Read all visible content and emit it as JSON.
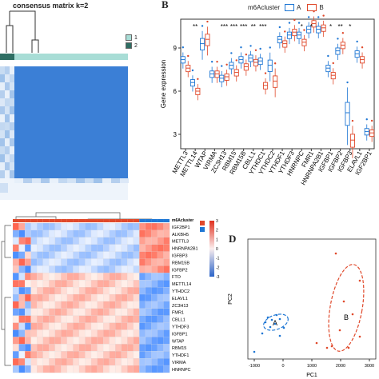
{
  "panel_a": {
    "title": "consensus matrix k=2",
    "legend": [
      "1",
      "2"
    ],
    "legend_colors": [
      "#a8ddd6",
      "#2e6e63"
    ]
  },
  "panel_b": {
    "letter": "B",
    "legend_title": "m6Acluster",
    "legend_labels": [
      "A",
      "B"
    ],
    "cluster_colors": {
      "A": "#1f77d4",
      "B": "#e0492b"
    },
    "ylabel": "Gene expression",
    "yticks": [
      "3",
      "6",
      "9"
    ],
    "genes": [
      "METTL3",
      "METTL14",
      "WTAP",
      "VIRMA",
      "ZC3H13",
      "RBM15",
      "RBM15B",
      "CBLL1",
      "YTHDC1",
      "YTHDC2",
      "YTHDF1",
      "YTHDF3",
      "HNRNPC",
      "FMR1",
      "HNRNPA2B1",
      "IGFBP1",
      "IGFBP2",
      "IGFBP3",
      "ELAVL1",
      "IGF2BP1"
    ],
    "signif": [
      "",
      "**",
      "",
      "",
      "***",
      "***",
      "***",
      "**",
      "***",
      "",
      "",
      "",
      "*",
      "*",
      "",
      "*",
      "**",
      "*",
      "",
      ""
    ]
  },
  "chart_data": {
    "type": "box",
    "ylabel": "Gene expression",
    "ylim": [
      2,
      11
    ],
    "categories": [
      "METTL3",
      "METTL14",
      "WTAP",
      "VIRMA",
      "ZC3H13",
      "RBM15",
      "RBM15B",
      "CBLL1",
      "YTHDC1",
      "YTHDC2",
      "YTHDF1",
      "YTHDF3",
      "HNRNPC",
      "FMR1",
      "HNRNPA2B1",
      "IGFBP1",
      "IGFBP2",
      "IGFBP3",
      "ELAVL1",
      "IGF2BP1"
    ],
    "series": [
      {
        "name": "A",
        "medians": [
          8.2,
          6.6,
          9.3,
          7.2,
          6.9,
          7.8,
          8.2,
          8.3,
          8.1,
          7.8,
          9.6,
          9.9,
          9.9,
          10.3,
          10.3,
          7.6,
          8.8,
          4.5,
          8.6,
          3.2
        ]
      },
      {
        "name": "B",
        "medians": [
          7.6,
          6.0,
          9.6,
          7.2,
          7.0,
          7.3,
          7.7,
          8.0,
          6.4,
          6.7,
          9.3,
          10.1,
          9.4,
          10.7,
          10.4,
          7.1,
          9.2,
          2.6,
          8.2,
          3.1
        ]
      }
    ]
  },
  "panel_c": {
    "annotation_title": "m6Acluster",
    "scale_ticks": [
      "3",
      "2",
      "1",
      "0",
      "-1",
      "-2",
      "-3"
    ],
    "rows": [
      "IGF2BP1",
      "ALKBH5",
      "METTL3",
      "HNRNPA2B1",
      "IGFBP3",
      "RBM15B",
      "IGFBP2",
      "FTO",
      "METTL14",
      "YTHDC2",
      "ELAVL1",
      "ZC3H13",
      "FMR1",
      "CBLL1",
      "YTHDF3",
      "IGFBP1",
      "WTAP",
      "RBM15",
      "YTHDF1",
      "VIRMA",
      "HNRNPC"
    ]
  },
  "panel_d": {
    "letter": "D",
    "xlabel": "PC1",
    "ylabel": "PC2",
    "label_a": "A",
    "label_b": "B",
    "xticks": [
      "-1000",
      "0",
      "1000",
      "2000",
      "3000"
    ]
  }
}
